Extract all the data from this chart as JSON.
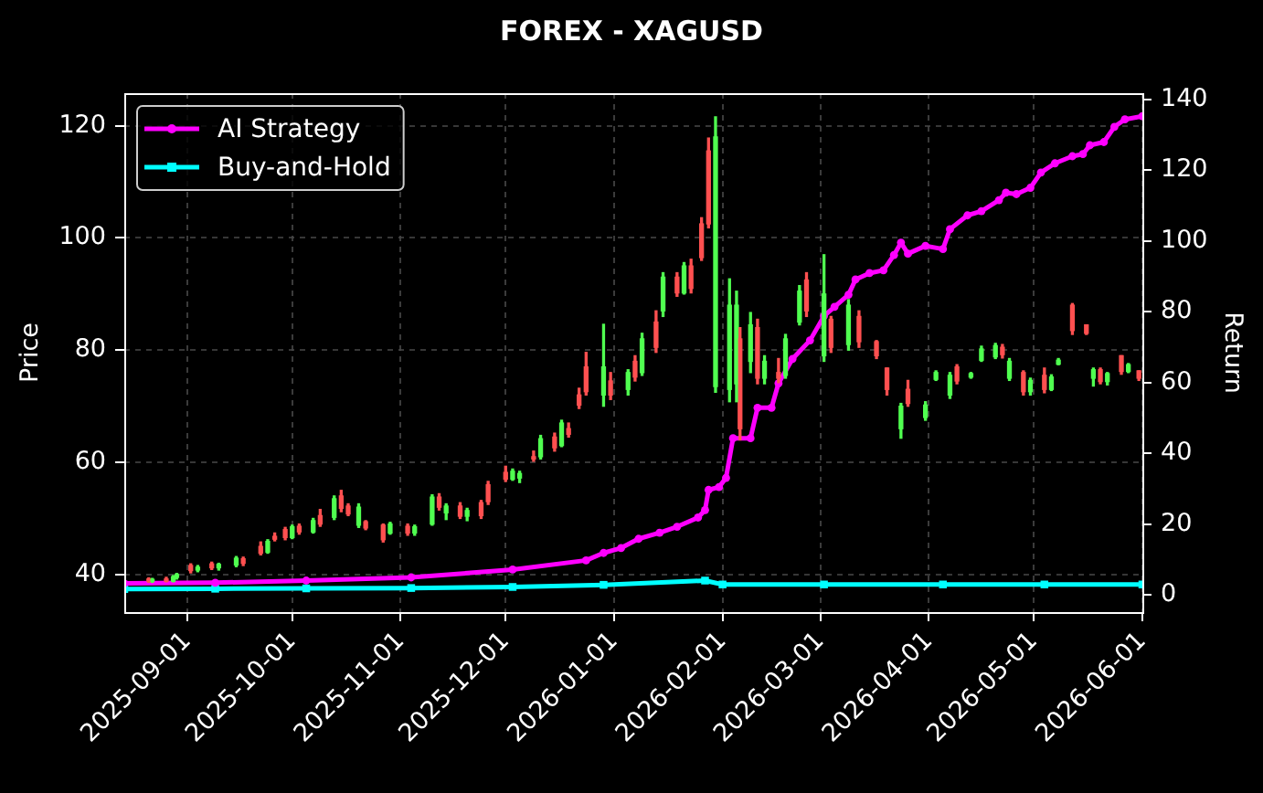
{
  "chart_data": {
    "type": "candlestick",
    "title": "FOREX - XAGUSD",
    "ylabel": "Price",
    "y2label": "Return",
    "x": [
      "2025-08-21",
      "2025-08-22",
      "2025-08-26",
      "2025-08-28",
      "2025-08-29",
      "2025-09-02",
      "2025-09-04",
      "2025-09-08",
      "2025-09-10",
      "2025-09-15",
      "2025-09-17",
      "2025-09-22",
      "2025-09-24",
      "2025-09-26",
      "2025-09-29",
      "2025-10-01",
      "2025-10-03",
      "2025-10-07",
      "2025-10-09",
      "2025-10-13",
      "2025-10-15",
      "2025-10-17",
      "2025-10-20",
      "2025-10-22",
      "2025-10-27",
      "2025-10-29",
      "2025-11-03",
      "2025-11-05",
      "2025-11-10",
      "2025-11-12",
      "2025-11-14",
      "2025-11-18",
      "2025-11-20",
      "2025-11-24",
      "2025-11-26",
      "2025-12-01",
      "2025-12-03",
      "2025-12-05",
      "2025-12-09",
      "2025-12-11",
      "2025-12-15",
      "2025-12-17",
      "2025-12-19",
      "2025-12-22",
      "2025-12-24",
      "2025-12-29",
      "2025-12-31",
      "2026-01-05",
      "2026-01-07",
      "2026-01-09",
      "2026-01-13",
      "2026-01-15",
      "2026-01-19",
      "2026-01-21",
      "2026-01-23",
      "2026-01-26",
      "2026-01-28",
      "2026-01-30",
      "2026-02-03",
      "2026-02-05",
      "2026-02-06",
      "2026-02-09",
      "2026-02-11",
      "2026-02-13",
      "2026-02-17",
      "2026-02-19",
      "2026-02-23",
      "2026-02-25",
      "2026-03-02",
      "2026-03-04",
      "2026-03-09",
      "2026-03-12",
      "2026-03-17",
      "2026-03-20",
      "2026-03-24",
      "2026-03-26",
      "2026-03-31",
      "2026-04-03",
      "2026-04-07",
      "2026-04-09",
      "2026-04-13",
      "2026-04-16",
      "2026-04-20",
      "2026-04-22",
      "2026-04-24",
      "2026-04-28",
      "2026-04-30",
      "2026-05-04",
      "2026-05-06",
      "2026-05-08",
      "2026-05-12",
      "2026-05-16",
      "2026-05-18",
      "2026-05-20",
      "2026-05-22",
      "2026-05-26",
      "2026-05-28",
      "2026-05-31"
    ],
    "ohlc": [
      [
        39.2,
        39.4,
        38.6,
        38.8
      ],
      [
        38.8,
        39.3,
        38.6,
        39.1
      ],
      [
        39.2,
        39.5,
        38.7,
        38.8
      ],
      [
        38.8,
        39.8,
        38.7,
        39.6
      ],
      [
        39.5,
        40.2,
        39.2,
        40.0
      ],
      [
        41.6,
        41.9,
        40.3,
        40.7
      ],
      [
        40.8,
        41.6,
        40.5,
        41.3
      ],
      [
        41.9,
        42.2,
        40.9,
        41.2
      ],
      [
        41.2,
        42.0,
        40.8,
        41.8
      ],
      [
        41.7,
        43.2,
        41.4,
        42.9
      ],
      [
        42.8,
        43.1,
        41.6,
        42.0
      ],
      [
        45.0,
        45.8,
        43.5,
        43.8
      ],
      [
        44.0,
        46.2,
        43.8,
        45.9
      ],
      [
        46.8,
        47.4,
        46.0,
        46.3
      ],
      [
        48.0,
        48.4,
        46.2,
        46.6
      ],
      [
        46.6,
        48.8,
        46.4,
        48.5
      ],
      [
        48.6,
        49.0,
        47.2,
        47.6
      ],
      [
        47.6,
        50.0,
        47.4,
        49.6
      ],
      [
        50.5,
        51.6,
        48.6,
        49.0
      ],
      [
        50.2,
        54.0,
        49.8,
        53.5
      ],
      [
        54.0,
        55.0,
        51.2,
        51.8
      ],
      [
        52.2,
        52.6,
        50.5,
        50.8
      ],
      [
        48.8,
        52.6,
        48.4,
        52.0
      ],
      [
        49.4,
        49.6,
        48.0,
        48.3
      ],
      [
        48.8,
        49.0,
        45.8,
        46.2
      ],
      [
        47.4,
        49.3,
        47.2,
        49.0
      ],
      [
        48.6,
        49.0,
        47.0,
        47.4
      ],
      [
        47.4,
        48.8,
        47.0,
        48.5
      ],
      [
        49.0,
        54.2,
        48.8,
        53.8
      ],
      [
        53.8,
        54.4,
        51.5,
        52.0
      ],
      [
        51.0,
        52.6,
        49.8,
        52.2
      ],
      [
        52.2,
        52.8,
        50.0,
        50.4
      ],
      [
        50.4,
        51.8,
        49.6,
        51.4
      ],
      [
        52.8,
        53.2,
        50.0,
        50.5
      ],
      [
        56.0,
        56.6,
        52.5,
        53.0
      ],
      [
        58.2,
        59.3,
        56.6,
        57.0
      ],
      [
        57.0,
        58.8,
        56.8,
        58.4
      ],
      [
        57.2,
        58.4,
        56.4,
        58.0
      ],
      [
        61.0,
        62.0,
        60.2,
        60.6
      ],
      [
        61.0,
        64.8,
        60.6,
        64.2
      ],
      [
        64.5,
        65.2,
        62.0,
        62.6
      ],
      [
        63.0,
        67.5,
        62.8,
        67.0
      ],
      [
        66.0,
        67.0,
        64.5,
        65.0
      ],
      [
        72.0,
        73.2,
        69.6,
        70.2
      ],
      [
        77.0,
        79.6,
        72.0,
        72.6
      ],
      [
        72.0,
        84.6,
        70.0,
        77.0
      ],
      [
        74.5,
        76.0,
        71.2,
        72.0
      ],
      [
        73.0,
        76.5,
        72.0,
        76.0
      ],
      [
        78.0,
        79.0,
        74.5,
        75.2
      ],
      [
        76.0,
        83.0,
        75.5,
        82.0
      ],
      [
        85.0,
        87.0,
        79.6,
        80.5
      ],
      [
        87.0,
        93.8,
        86.0,
        93.0
      ],
      [
        93.0,
        93.8,
        89.6,
        90.2
      ],
      [
        90.2,
        95.6,
        90.0,
        95.0
      ],
      [
        95.0,
        96.2,
        90.2,
        91.0
      ],
      [
        102.5,
        103.6,
        96.0,
        96.5
      ],
      [
        115.5,
        117.8,
        101.8,
        102.5
      ],
      [
        73.5,
        121.6,
        72.5,
        118.0
      ],
      [
        73.0,
        92.7,
        70.8,
        88.0
      ],
      [
        74.0,
        90.5,
        70.8,
        88.0
      ],
      [
        82.0,
        84.0,
        64.0,
        66.0
      ],
      [
        78.0,
        86.7,
        76.0,
        84.5
      ],
      [
        84.0,
        85.5,
        74.0,
        75.0
      ],
      [
        75.0,
        79.0,
        74.0,
        78.0
      ],
      [
        76.0,
        78.5,
        74.2,
        75.0
      ],
      [
        75.5,
        82.8,
        75.0,
        82.0
      ],
      [
        85.0,
        91.5,
        84.5,
        90.5
      ],
      [
        92.5,
        93.8,
        86.0,
        87.0
      ],
      [
        79.0,
        97.0,
        78.0,
        90.0
      ],
      [
        85.5,
        86.0,
        79.6,
        80.5
      ],
      [
        81.0,
        89.0,
        80.0,
        88.0
      ],
      [
        86.0,
        87.0,
        80.5,
        81.5
      ],
      [
        81.5,
        81.7,
        78.5,
        79.0
      ],
      [
        76.8,
        76.8,
        72.0,
        73.0
      ],
      [
        66.0,
        70.5,
        64.3,
        70.0
      ],
      [
        73.0,
        74.6,
        70.0,
        70.5
      ],
      [
        68.0,
        70.8,
        67.5,
        70.2
      ],
      [
        74.8,
        76.3,
        74.6,
        76.0
      ],
      [
        72.0,
        76.0,
        71.4,
        75.5
      ],
      [
        77.0,
        77.4,
        74.0,
        74.5
      ],
      [
        75.2,
        76.0,
        75.0,
        75.8
      ],
      [
        78.2,
        80.7,
        78.0,
        80.2
      ],
      [
        78.8,
        81.2,
        78.5,
        80.8
      ],
      [
        80.5,
        81.0,
        78.6,
        79.2
      ],
      [
        75.0,
        78.5,
        74.6,
        78.0
      ],
      [
        76.0,
        76.3,
        72.0,
        72.6
      ],
      [
        72.6,
        75.0,
        72.0,
        74.6
      ],
      [
        75.5,
        76.8,
        72.4,
        73.0
      ],
      [
        73.0,
        75.6,
        72.8,
        75.2
      ],
      [
        77.5,
        78.5,
        77.4,
        78.2
      ],
      [
        88.0,
        88.3,
        82.8,
        83.5
      ],
      [
        84.5,
        84.5,
        82.8,
        83.0
      ],
      [
        75.0,
        76.8,
        73.6,
        76.5
      ],
      [
        76.5,
        76.8,
        74.0,
        74.4
      ],
      [
        74.4,
        76.0,
        73.8,
        75.8
      ],
      [
        79.0,
        79.0,
        75.7,
        76.2
      ],
      [
        76.2,
        77.6,
        76.0,
        77.4
      ],
      [
        76.3,
        76.3,
        74.6,
        75.0
      ]
    ],
    "colors": [
      "#ff5050",
      "#50ff50",
      "#ff5050",
      "#50ff50",
      "#50ff50",
      "#ff5050",
      "#50ff50",
      "#ff5050",
      "#50ff50",
      "#50ff50",
      "#ff5050",
      "#ff5050",
      "#50ff50",
      "#ff5050",
      "#ff5050",
      "#50ff50",
      "#ff5050",
      "#50ff50",
      "#ff5050",
      "#50ff50",
      "#ff5050",
      "#ff5050",
      "#50ff50",
      "#ff5050",
      "#ff5050",
      "#50ff50",
      "#ff5050",
      "#50ff50",
      "#50ff50",
      "#ff5050",
      "#50ff50",
      "#ff5050",
      "#50ff50",
      "#ff5050",
      "#ff5050",
      "#ff5050",
      "#50ff50",
      "#50ff50",
      "#ff5050",
      "#50ff50",
      "#ff5050",
      "#50ff50",
      "#ff5050",
      "#ff5050",
      "#ff5050",
      "#50ff50",
      "#ff5050",
      "#50ff50",
      "#ff5050",
      "#50ff50",
      "#ff5050",
      "#50ff50",
      "#ff5050",
      "#50ff50",
      "#ff5050",
      "#ff5050",
      "#ff5050",
      "#50ff50",
      "#50ff50",
      "#50ff50",
      "#ff5050",
      "#50ff50",
      "#ff5050",
      "#50ff50",
      "#ff5050",
      "#50ff50",
      "#50ff50",
      "#ff5050",
      "#50ff50",
      "#ff5050",
      "#50ff50",
      "#ff5050",
      "#ff5050",
      "#ff5050",
      "#50ff50",
      "#ff5050",
      "#50ff50",
      "#50ff50",
      "#50ff50",
      "#ff5050",
      "#50ff50",
      "#50ff50",
      "#50ff50",
      "#ff5050",
      "#50ff50",
      "#ff5050",
      "#50ff50",
      "#ff5050",
      "#50ff50",
      "#50ff50",
      "#ff5050",
      "#ff5050",
      "#50ff50",
      "#ff5050",
      "#50ff50",
      "#ff5050",
      "#50ff50",
      "#ff5050"
    ],
    "series": [
      {
        "name": "AI Strategy",
        "type": "line",
        "axis": "y2",
        "color": "#ff00ff",
        "marker": "circle",
        "x": [
          "2025-08-14",
          "2025-09-09",
          "2025-10-05",
          "2025-11-04",
          "2025-12-03",
          "2025-12-24",
          "2025-12-29",
          "2026-01-03",
          "2026-01-08",
          "2026-01-14",
          "2026-01-19",
          "2026-01-25",
          "2026-01-27",
          "2026-01-28",
          "2026-01-31",
          "2026-02-02",
          "2026-02-04",
          "2026-02-09",
          "2026-02-11",
          "2026-02-15",
          "2026-02-17",
          "2026-02-21",
          "2026-02-26",
          "2026-03-02",
          "2026-03-05",
          "2026-03-09",
          "2026-03-11",
          "2026-03-15",
          "2026-03-19",
          "2026-03-22",
          "2026-03-24",
          "2026-03-26",
          "2026-03-31",
          "2026-04-05",
          "2026-04-07",
          "2026-04-12",
          "2026-04-16",
          "2026-04-21",
          "2026-04-23",
          "2026-04-26",
          "2026-04-30",
          "2026-05-03",
          "2026-05-07",
          "2026-05-12",
          "2026-05-15",
          "2026-05-17",
          "2026-05-21",
          "2026-05-24",
          "2026-05-27",
          "2026-06-01"
        ],
        "values": [
          3.3,
          3.5,
          4.1,
          5.0,
          7.2,
          9.8,
          11.9,
          13.3,
          15.9,
          17.6,
          19.3,
          21.9,
          24.0,
          29.7,
          30.5,
          33.1,
          44.3,
          44.3,
          52.9,
          52.9,
          59.8,
          66.7,
          71.9,
          78.8,
          81.4,
          84.8,
          89.1,
          90.9,
          91.7,
          96.0,
          99.5,
          96.4,
          98.6,
          97.7,
          103.3,
          107.2,
          108.4,
          111.5,
          113.6,
          113.2,
          115.0,
          119.3,
          121.9,
          123.9,
          124.5,
          127.0,
          127.9,
          132.2,
          134.3,
          135.2
        ]
      },
      {
        "name": "Buy-and-Hold",
        "type": "line",
        "axis": "y2",
        "color": "#00ffff",
        "marker": "square",
        "x": [
          "2025-08-14",
          "2025-09-09",
          "2025-10-05",
          "2025-11-04",
          "2025-12-03",
          "2025-12-29",
          "2026-01-27",
          "2026-02-01",
          "2026-03-02",
          "2026-04-05",
          "2026-05-04",
          "2026-06-01"
        ],
        "values": [
          1.7,
          1.8,
          1.9,
          2.0,
          2.3,
          2.9,
          4.1,
          3.0,
          3.0,
          3.0,
          3.0,
          3.0
        ]
      }
    ],
    "xlim": [
      "2025-08-14",
      "2026-06-01"
    ],
    "xticks": [
      "2025-09-01",
      "2025-10-01",
      "2025-11-01",
      "2025-12-01",
      "2026-01-01",
      "2026-02-01",
      "2026-03-01",
      "2026-04-01",
      "2026-05-01",
      "2026-06-01"
    ],
    "ylim": [
      33.3,
      125.8
    ],
    "yticks": [
      40,
      60,
      80,
      100,
      120
    ],
    "y2lim": [
      -4.8,
      141.7
    ],
    "y2ticks": [
      0,
      20,
      40,
      60,
      80,
      100,
      120,
      140
    ],
    "grid": true,
    "legend": "top left"
  }
}
